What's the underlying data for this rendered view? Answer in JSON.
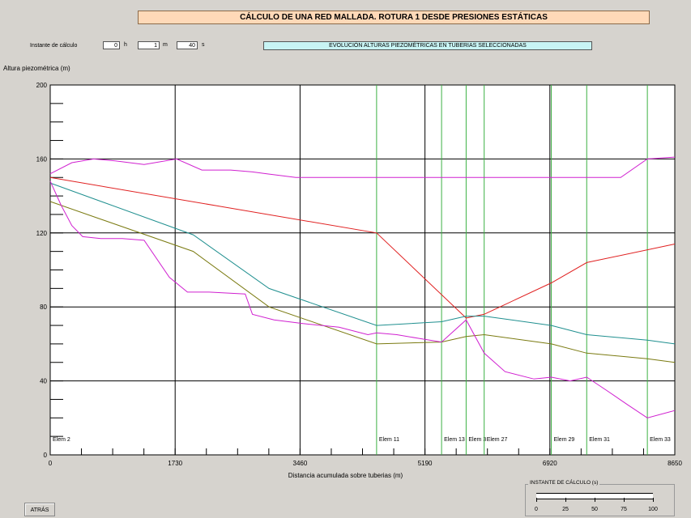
{
  "header": {
    "title": "CÁLCULO DE UNA RED MALLADA. ROTURA 1 DESDE PRESIONES ESTÁTICAS"
  },
  "time": {
    "label": "Instante de cálculo",
    "hours": "0",
    "hours_unit": "h",
    "minutes": "1",
    "minutes_unit": "m",
    "seconds": "40",
    "seconds_unit": "s"
  },
  "evolution_label": "EVOLUCIÓN ALTURAS PIEZOMÉTRICAS EN TUBERIAS SELECCIONADAS",
  "back_button": "ATRÁS",
  "slider": {
    "title": "INSTANTE DE CÁLCULO (s)",
    "labels": [
      "0",
      "25",
      "50",
      "75",
      "100"
    ],
    "value": 100
  },
  "colors": {
    "background": "#d6d3ce",
    "title_bg": "#ffd9b8",
    "evolution_bg": "#c8f4f4",
    "element_lines": "#3cb043",
    "grid": "#000000"
  },
  "chart_data": {
    "type": "line",
    "ylabel": "Altura piezométrica (m)",
    "xlabel": "Distancia acumulada sobre tuberias (m)",
    "xlim": [
      0,
      8650
    ],
    "ylim": [
      0,
      200
    ],
    "x_ticks": [
      "0",
      "1730",
      "3460",
      "5190",
      "6920",
      "8650"
    ],
    "y_ticks": [
      "0",
      "40",
      "80",
      "120",
      "160",
      "200"
    ],
    "grid": true,
    "element_markers": [
      {
        "label": "Elem 2",
        "x": 0
      },
      {
        "label": "Elem 11",
        "x": 4520
      },
      {
        "label": "Elem 13",
        "x": 5420
      },
      {
        "label": "Elem 3",
        "x": 5760
      },
      {
        "label": "Elem 27",
        "x": 6010
      },
      {
        "label": "Elem 29",
        "x": 6940
      },
      {
        "label": "Elem 31",
        "x": 7430
      },
      {
        "label": "Elem 33",
        "x": 8270
      }
    ],
    "series": [
      {
        "color": "#e02020",
        "x": [
          0,
          4520,
          5760,
          6010,
          6940,
          7430,
          8650
        ],
        "y": [
          150,
          120,
          74,
          76,
          93,
          104,
          114
        ]
      },
      {
        "color": "#1f8f8f",
        "x": [
          0,
          1980,
          3030,
          4520,
          5420,
          5760,
          6010,
          6940,
          7430,
          8270,
          8650
        ],
        "y": [
          147,
          119,
          90,
          70,
          72,
          75,
          75,
          70,
          65,
          62,
          60
        ]
      },
      {
        "color": "#7a7a10",
        "x": [
          0,
          1980,
          3030,
          4520,
          5420,
          5760,
          6010,
          6940,
          7430,
          8270,
          8650
        ],
        "y": [
          137,
          110,
          80,
          60,
          61,
          64,
          65,
          60,
          55,
          52,
          50
        ]
      },
      {
        "color": "#d020d0",
        "x": [
          0,
          300,
          600,
          900,
          1300,
          1750,
          2100,
          2500,
          2800,
          3000,
          3400,
          3800,
          4300,
          4520,
          4700,
          5000,
          5420,
          5760,
          6010,
          6200,
          6500,
          6940,
          7300,
          7600,
          7900,
          8270,
          8650
        ],
        "y": [
          152,
          158,
          160,
          159,
          157,
          160,
          154,
          154,
          153,
          152,
          150,
          150,
          150,
          150,
          150,
          150,
          150,
          150,
          150,
          150,
          150,
          150,
          150,
          150,
          150,
          160,
          161
        ]
      },
      {
        "color": "#d020d0",
        "x": [
          0,
          150,
          300,
          450,
          700,
          1000,
          1300,
          1650,
          1900,
          2200,
          2700,
          2800,
          3100,
          3500,
          4000,
          4400,
          4520,
          4800,
          5100,
          5420,
          5760,
          6010,
          6300,
          6700,
          6940,
          7200,
          7430,
          7700,
          8000,
          8270,
          8650
        ],
        "y": [
          148,
          135,
          124,
          118,
          117,
          117,
          116,
          96,
          88,
          88,
          87,
          76,
          73,
          71,
          69,
          65,
          66,
          65,
          63,
          61,
          73,
          55,
          45,
          41,
          42,
          40,
          42,
          35,
          27,
          20,
          24
        ]
      }
    ]
  }
}
